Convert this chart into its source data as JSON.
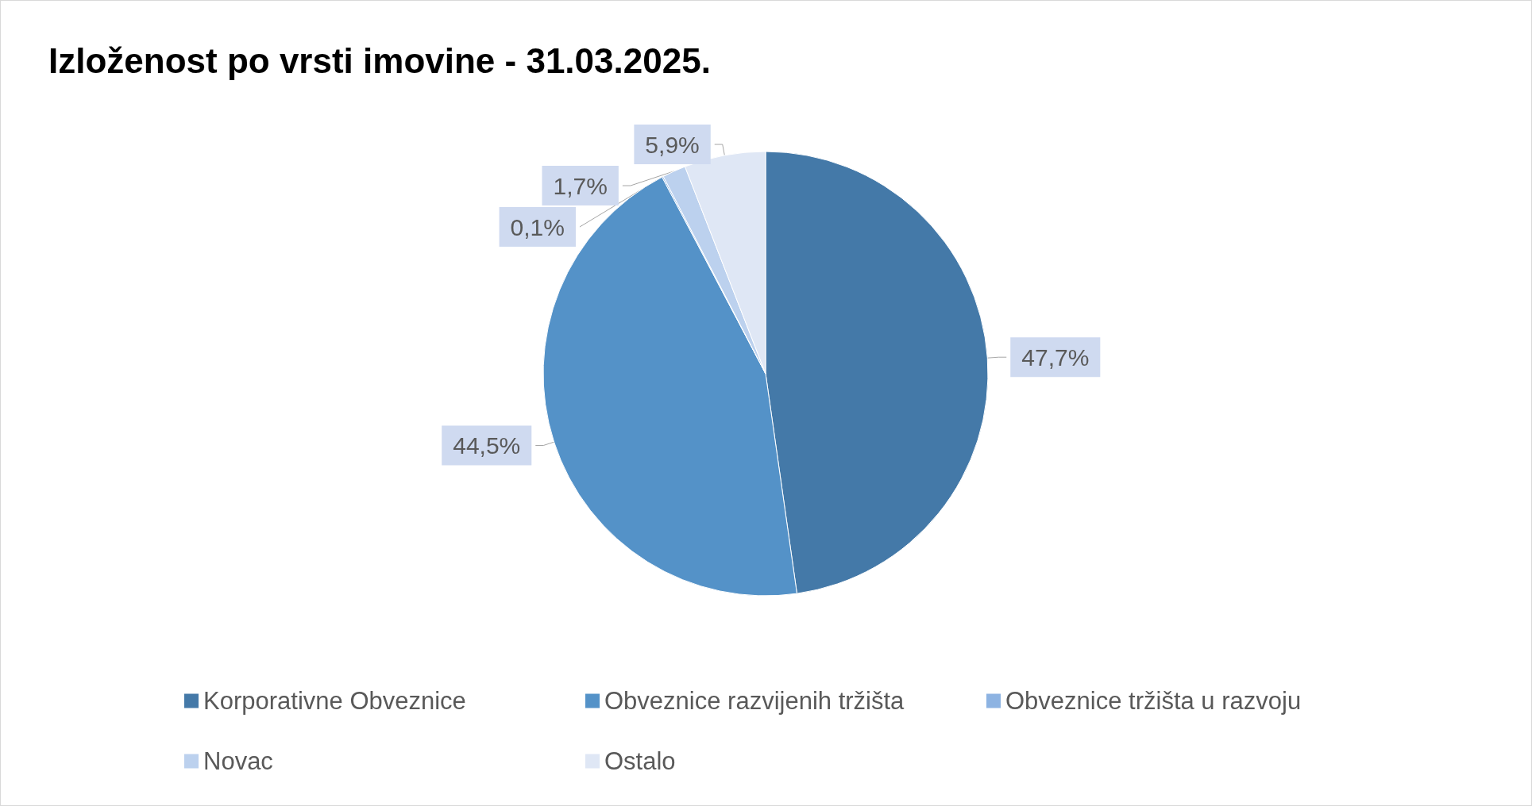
{
  "chart_data": {
    "type": "pie",
    "title": "Izloženost po vrsti imovine - 31.03.2025.",
    "categories": [
      "Korporativne Obveznice",
      "Obveznice razvijenih tržišta",
      "Obveznice tržišta u razvoju",
      "Novac",
      "Ostalo"
    ],
    "values": [
      47.7,
      44.5,
      0.1,
      1.7,
      5.9
    ],
    "colors": [
      "#4479a8",
      "#5492c8",
      "#8db3e2",
      "#bcd1ee",
      "#dfe7f5"
    ],
    "value_labels": [
      "47,7%",
      "44,5%",
      "0,1%",
      "1,7%",
      "5,9%"
    ],
    "legend": "bottom"
  }
}
